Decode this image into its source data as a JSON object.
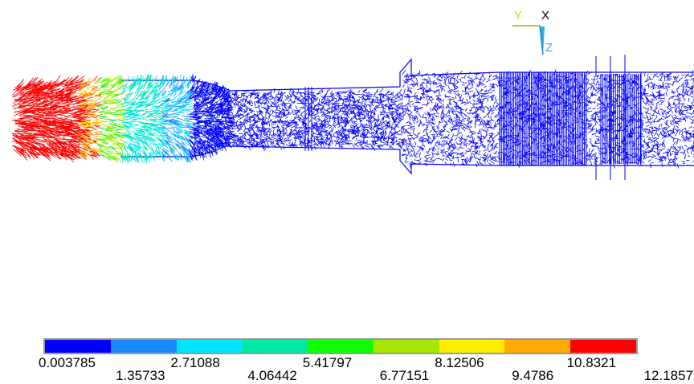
{
  "triad": {
    "y_label": "Y",
    "x_label": "X",
    "z_label": "Z",
    "y_color": "#e5d400",
    "x_color": "#000000",
    "z_color": "#39a9e0"
  },
  "legend": {
    "colors": [
      "#0000ff",
      "#178bff",
      "#00e5ff",
      "#00e8a6",
      "#10ff00",
      "#a6e600",
      "#ffee00",
      "#ffaa00",
      "#ff0000"
    ],
    "upper_ticks": [
      "0.003785",
      "2.71088",
      "5.41797",
      "8.12506",
      "10.8321"
    ],
    "lower_ticks": [
      "1.35733",
      "4.06442",
      "6.77151",
      "9.4786",
      "12.1857"
    ]
  },
  "field": {
    "colormap_min": 0.003785,
    "colormap_max": 12.1857
  }
}
